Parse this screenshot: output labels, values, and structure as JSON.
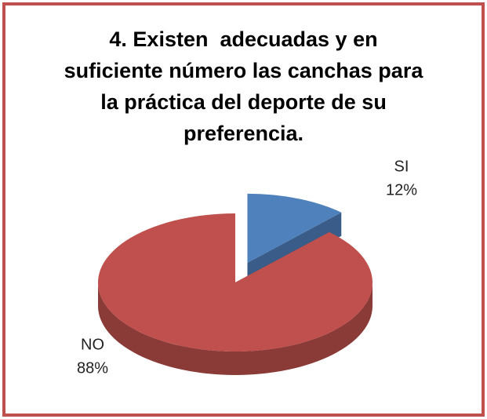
{
  "chart_data": {
    "type": "pie",
    "title": "4. Existen  adecuadas y en suficiente número las canchas para la práctica del deporte de su preferencia.",
    "categories": [
      "SI",
      "NO"
    ],
    "values": [
      12,
      88
    ],
    "value_labels": [
      "12%",
      "88%"
    ],
    "colors": [
      "#4f81bd",
      "#c0504d"
    ]
  }
}
